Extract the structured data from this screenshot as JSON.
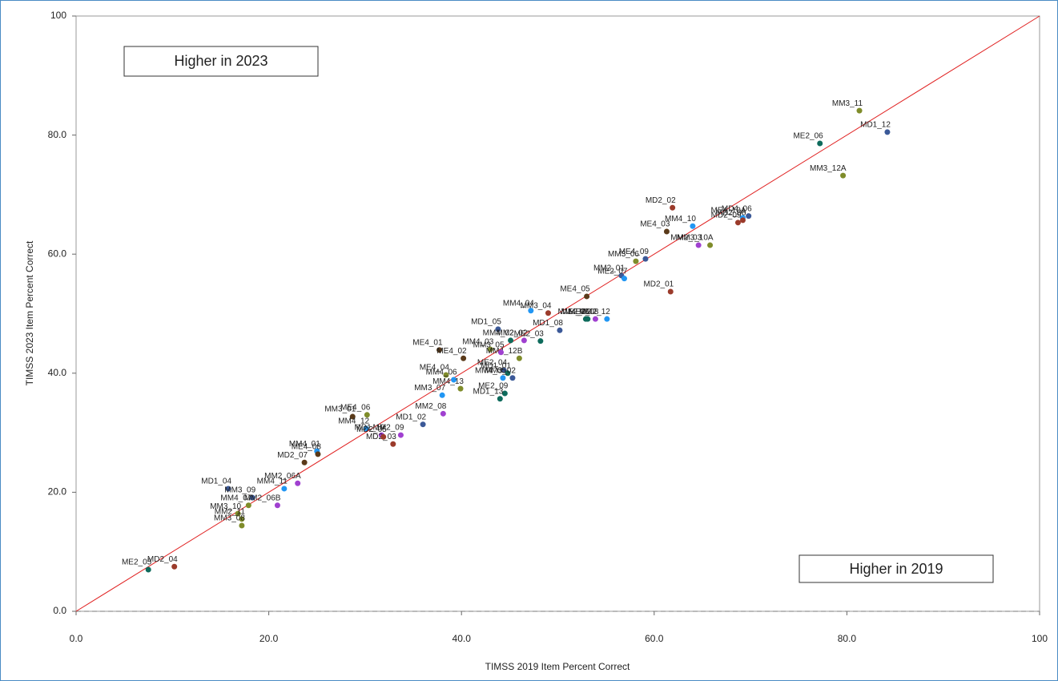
{
  "chart_data": {
    "type": "scatter",
    "x_label": "TIMSS 2019 Item Percent Correct",
    "y_label": "TIMSS 2023 Item Percent Correct",
    "annotations": [
      "Higher in 2023",
      "Higher in 2019"
    ],
    "xlim": [
      0,
      100
    ],
    "ylim": [
      0,
      100
    ],
    "xticks": [
      {
        "value": 0,
        "label": "0.0"
      },
      {
        "value": 20,
        "label": "20.0"
      },
      {
        "value": 40,
        "label": "40.0"
      },
      {
        "value": 60,
        "label": "60.0"
      },
      {
        "value": 80,
        "label": "80.0"
      },
      100
    ],
    "yticks": [
      {
        "value": 0,
        "label": "0.0"
      },
      {
        "value": 20,
        "label": "20.0"
      },
      {
        "value": 40,
        "label": "40.0"
      },
      {
        "value": 60,
        "label": "60.0"
      },
      {
        "value": 80,
        "label": "80.0"
      },
      100
    ],
    "identity_line": true,
    "line_color": "#e02020",
    "point_labels": [
      "MM3_11",
      "MD1_12",
      "ME2_06",
      "MM3_12A",
      "MD2_02",
      "MD4_06",
      "ME4_10A",
      "MD2_09",
      "MM4_10",
      "ME4_03",
      "MD2_08",
      "MM2_03",
      "MM3_10A",
      "ME4_09",
      "MM3_06",
      "MM2_01",
      "ME2_07",
      "MD2_01",
      "ME4_05",
      "MM4_04",
      "MM4_08",
      "ME2_08",
      "MD1_08",
      "MM3_04",
      "MM2_12",
      "ME2_02",
      "MD1_05",
      "MM4_02",
      "ME2_03",
      "MM2_02",
      "ME4_01",
      "ME4_02",
      "MM4_03",
      "MM4_12B",
      "MM3_05",
      "ME2_04",
      "MD1_01",
      "MM4_05",
      "MM3_02",
      "ME4_04",
      "MM4_06",
      "MM4_13",
      "MM3_07",
      "ME2_09",
      "MD1_13",
      "MM2_08",
      "ME4_06",
      "MM3_01",
      "MM4_12",
      "MD1_10",
      "MM2_09",
      "MD1_02",
      "MD2_03",
      "MD2_05",
      "MM4_01",
      "ME4_08",
      "MD2_07",
      "MM2_06A",
      "MM4_11",
      "MD1_04",
      "MM3_09",
      "MM2_06B",
      "MM3_10",
      "MM4_07",
      "MM2_11",
      "MM3_08",
      "MD2_04",
      "ME2_05"
    ],
    "x": [
      81.3,
      84.2,
      77.2,
      79.6,
      61.9,
      69.8,
      69.2,
      68.7,
      64.0,
      61.3,
      69.2,
      64.6,
      65.8,
      59.1,
      58.1,
      56.6,
      56.9,
      61.7,
      53.0,
      47.2,
      52.9,
      53.9,
      50.2,
      49.0,
      55.1,
      53.1,
      43.8,
      45.1,
      48.2,
      46.5,
      37.7,
      40.2,
      43.0,
      46.0,
      44.1,
      44.4,
      44.8,
      44.3,
      45.3,
      38.4,
      39.2,
      39.9,
      38.0,
      44.5,
      44.0,
      38.1,
      30.2,
      28.7,
      30.1,
      31.7,
      33.7,
      36.0,
      32.9,
      31.9,
      25.0,
      25.1,
      23.7,
      23.0,
      21.6,
      15.8,
      18.3,
      20.9,
      16.8,
      17.9,
      17.2,
      17.2,
      10.2,
      7.5
    ],
    "values": [
      84.1,
      80.5,
      78.6,
      73.2,
      67.8,
      66.4,
      66.1,
      65.3,
      64.7,
      63.8,
      65.7,
      61.5,
      61.5,
      59.2,
      58.8,
      56.4,
      55.9,
      53.7,
      52.9,
      50.5,
      49.1,
      49.1,
      47.2,
      50.1,
      49.1,
      49.1,
      47.4,
      45.5,
      45.4,
      45.5,
      43.9,
      42.5,
      44.0,
      42.5,
      43.5,
      40.5,
      40.0,
      39.2,
      39.2,
      39.7,
      38.9,
      37.4,
      36.3,
      36.6,
      35.7,
      33.2,
      33.0,
      32.7,
      30.7,
      29.6,
      29.6,
      31.4,
      28.1,
      29.3,
      26.9,
      26.4,
      25.0,
      21.5,
      20.6,
      20.6,
      19.1,
      17.8,
      16.4,
      17.8,
      15.5,
      14.4,
      7.5,
      7.0
    ],
    "colors": [
      "#7f8c2a",
      "#3b5998",
      "#0e6b5c",
      "#7f8c2a",
      "#9b3b2b",
      "#3b5998",
      "#2196f3",
      "#9b3b2b",
      "#2196f3",
      "#5a3a1a",
      "#9b3b2b",
      "#a040d0",
      "#7f8c2a",
      "#3b5998",
      "#7f8c2a",
      "#3b5998",
      "#2196f3",
      "#9b3b2b",
      "#5a3a1a",
      "#2196f3",
      "#0e6b5c",
      "#a040d0",
      "#3b5998",
      "#9b3b2b",
      "#2196f3",
      "#0e6b5c",
      "#3b5998",
      "#0e6b5c",
      "#0e6b5c",
      "#a040d0",
      "#5a3a1a",
      "#5a3a1a",
      "#7f8c2a",
      "#7f8c2a",
      "#a040d0",
      "#3b5998",
      "#0e6b5c",
      "#2196f3",
      "#3b5998",
      "#7f8c2a",
      "#2196f3",
      "#7f8c2a",
      "#2196f3",
      "#0e6b5c",
      "#0e6b5c",
      "#a040d0",
      "#7f8c2a",
      "#5a3a1a",
      "#2196f3",
      "#a040d0",
      "#a040d0",
      "#3b5998",
      "#9b3b2b",
      "#9b3b2b",
      "#2196f3",
      "#5a3a1a",
      "#5a3a1a",
      "#a040d0",
      "#2196f3",
      "#3b5998",
      "#3b5998",
      "#a040d0",
      "#7f8c2a",
      "#7f8c2a",
      "#7f8c2a",
      "#7f8c2a",
      "#9b3b2b",
      "#0e6b5c"
    ]
  }
}
